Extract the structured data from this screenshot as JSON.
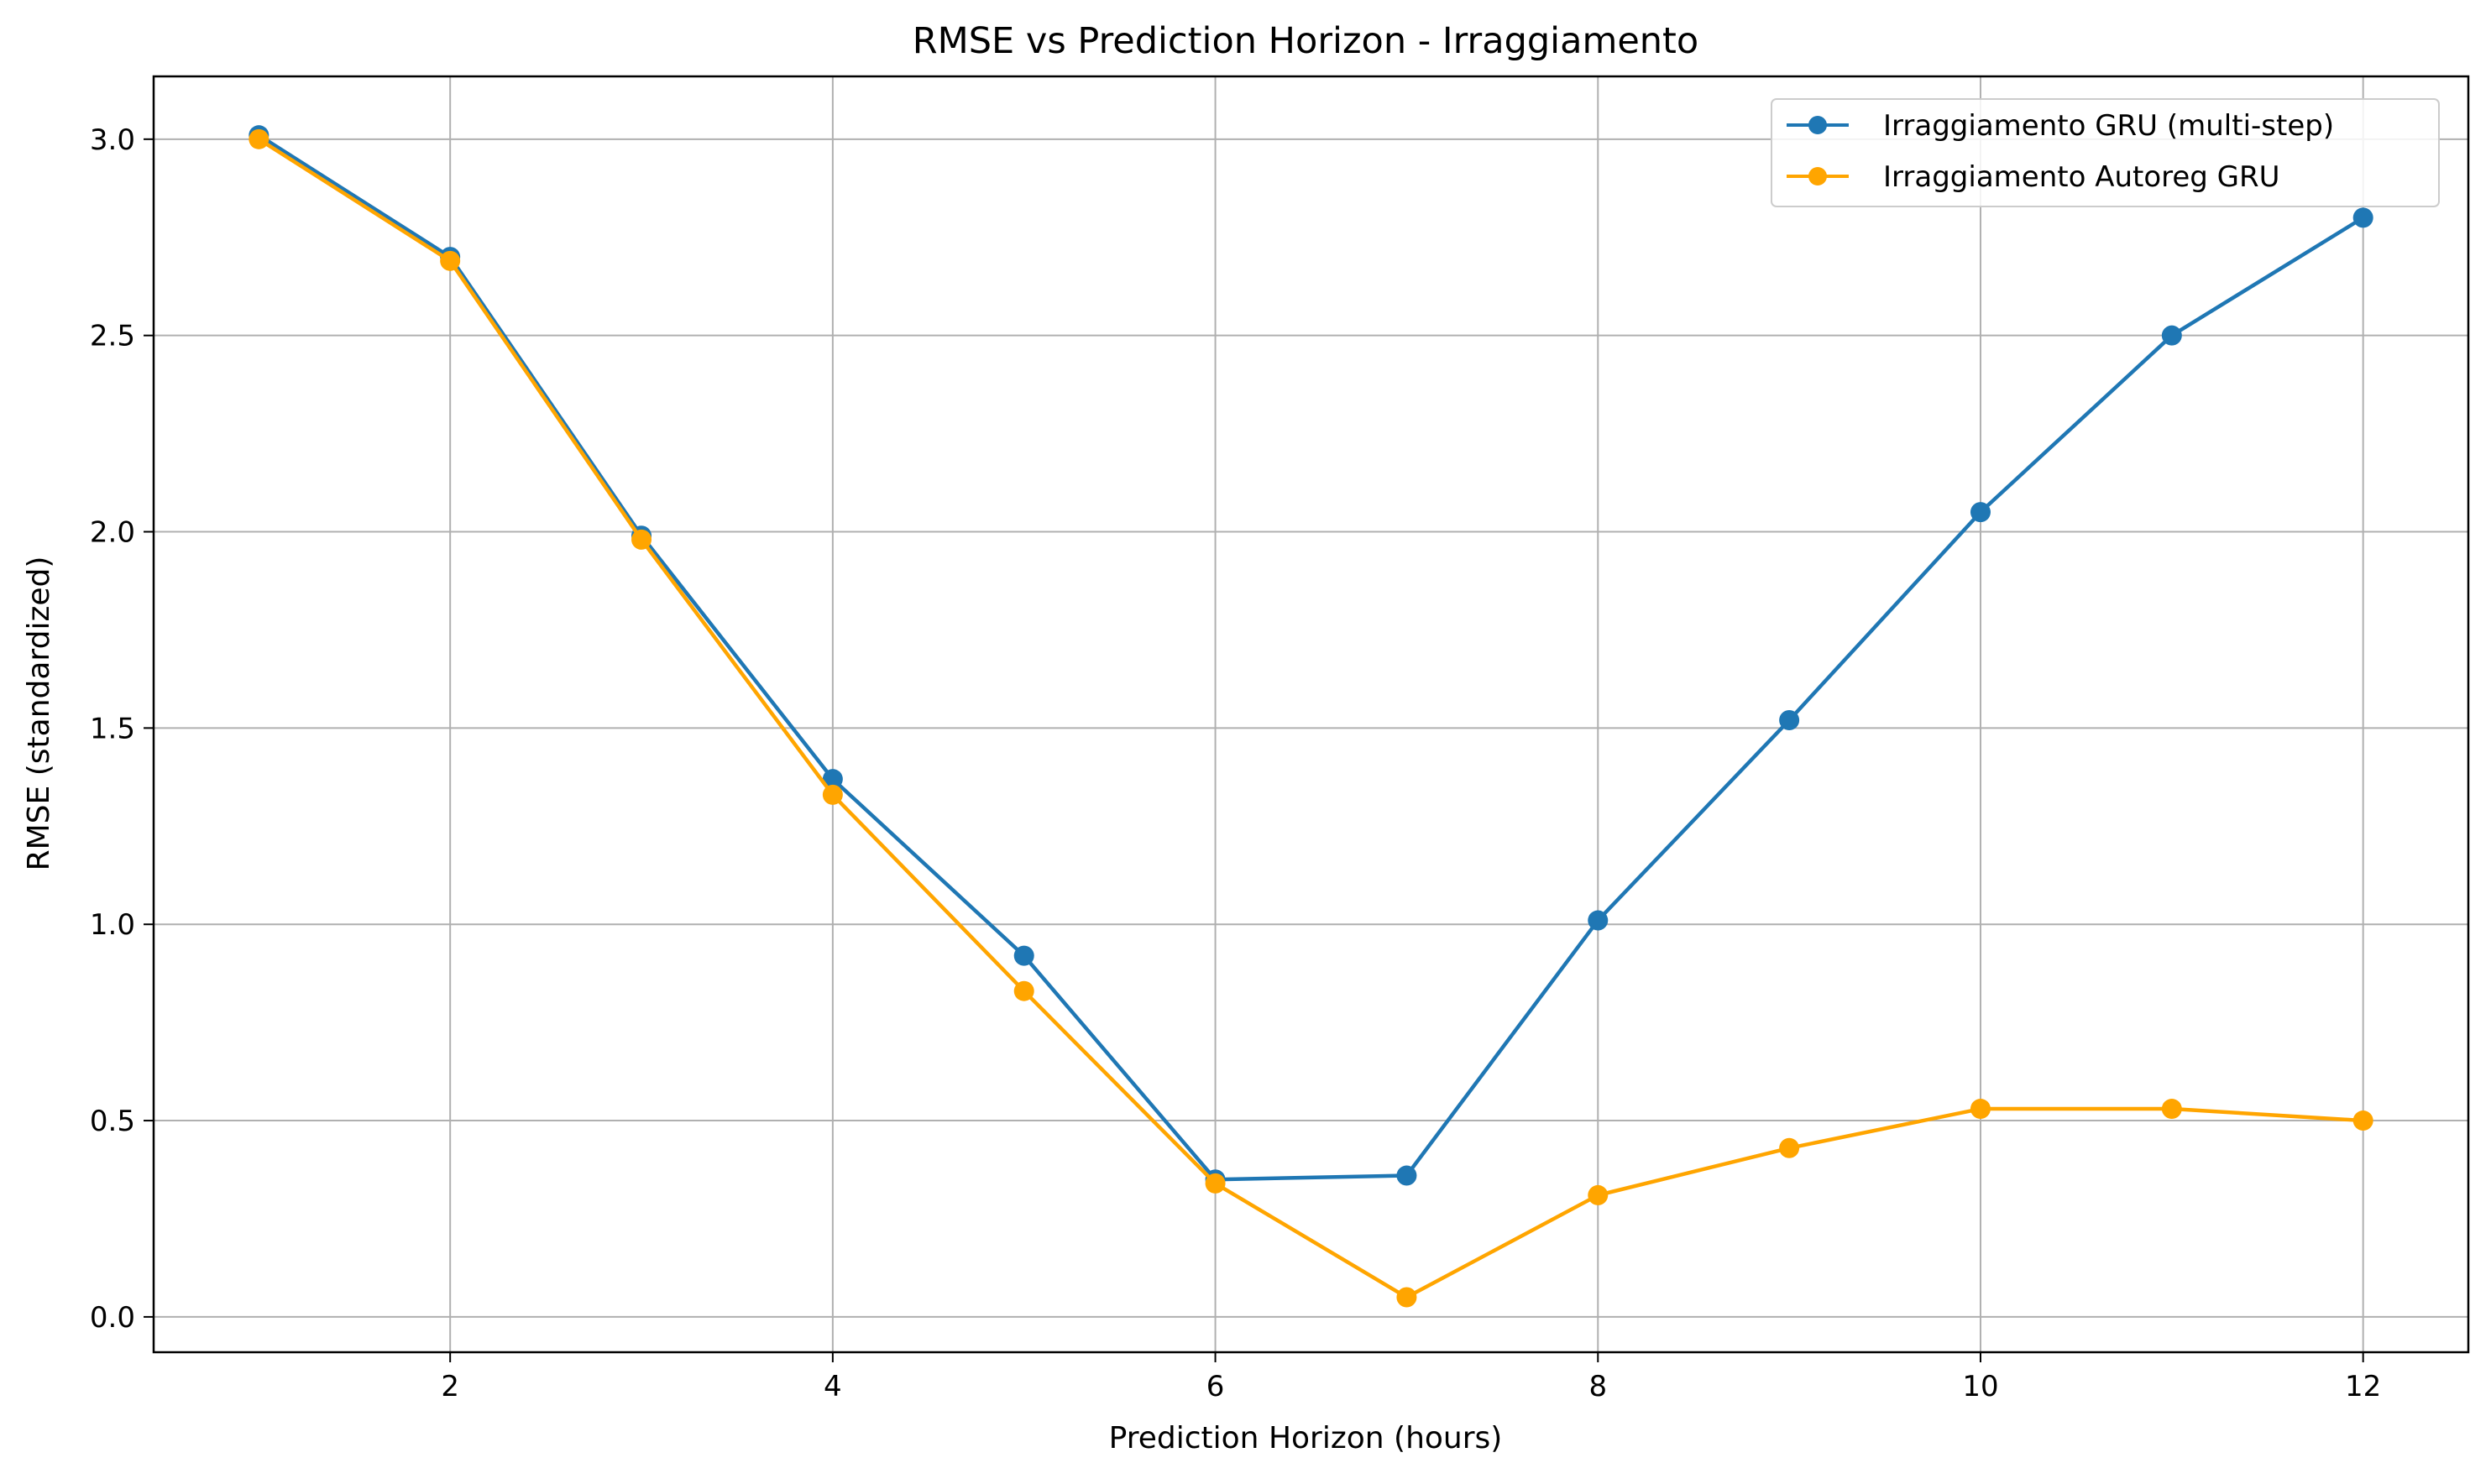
{
  "chart_data": {
    "type": "line",
    "title": "RMSE vs Prediction Horizon - Irraggiamento",
    "xlabel": "Prediction Horizon (hours)",
    "ylabel": "RMSE (standardized)",
    "x": [
      1,
      2,
      3,
      4,
      5,
      6,
      7,
      8,
      9,
      10,
      11,
      12
    ],
    "xlim": [
      0.45,
      12.55
    ],
    "ylim": [
      -0.09,
      3.16
    ],
    "xticks": [
      2,
      4,
      6,
      8,
      10,
      12
    ],
    "xtick_labels": [
      "2",
      "4",
      "6",
      "8",
      "10",
      "12"
    ],
    "yticks": [
      0.0,
      0.5,
      1.0,
      1.5,
      2.0,
      2.5,
      3.0
    ],
    "ytick_labels": [
      "0.0",
      "0.5",
      "1.0",
      "1.5",
      "2.0",
      "2.5",
      "3.0"
    ],
    "grid": true,
    "legend_position": "top-right",
    "series": [
      {
        "name": "Irraggiamento GRU (multi-step)",
        "color": "#1f77b4",
        "marker": "circle",
        "values": [
          3.01,
          2.7,
          1.99,
          1.37,
          0.92,
          0.35,
          0.36,
          1.01,
          1.52,
          2.05,
          2.5,
          2.8
        ]
      },
      {
        "name": "Irraggiamento Autoreg GRU",
        "color": "#ffa500",
        "marker": "circle",
        "values": [
          3.0,
          2.69,
          1.98,
          1.33,
          0.83,
          0.34,
          0.05,
          0.31,
          0.43,
          0.53,
          0.53,
          0.5
        ]
      }
    ]
  }
}
